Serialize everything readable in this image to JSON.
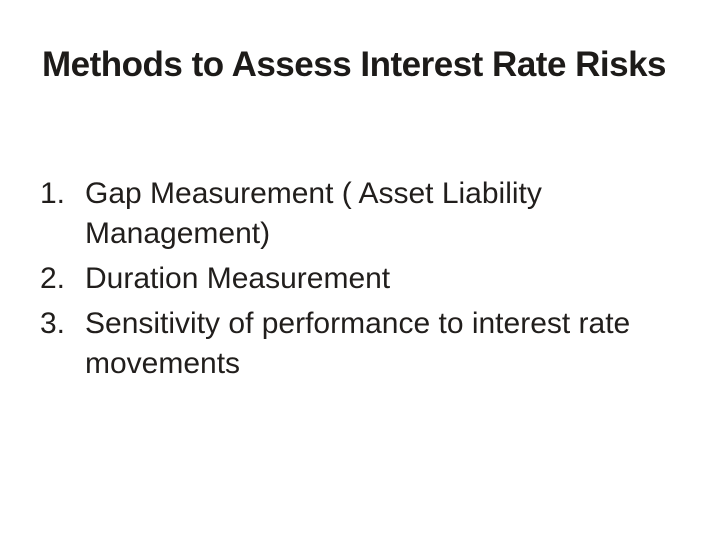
{
  "slide": {
    "title": "Methods to Assess Interest Rate Risks",
    "list": [
      {
        "number": "1.",
        "text": "Gap Measurement ( Asset Liability Management)"
      },
      {
        "number": "2.",
        "text": "Duration Measurement"
      },
      {
        "number": "3.",
        "text": "Sensitivity of performance to interest rate movements"
      }
    ],
    "colors": {
      "background": "#ffffff",
      "title_text": "#1d1b19",
      "body_text": "#211e1c"
    }
  }
}
